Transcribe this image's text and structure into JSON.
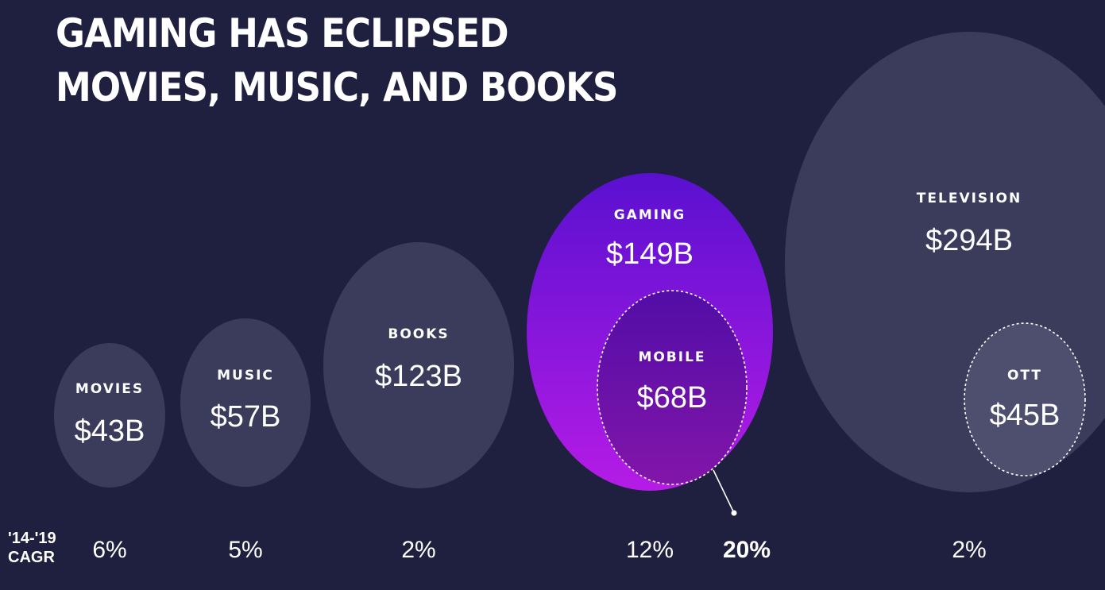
{
  "title": {
    "line1": "GAMING HAS ECLIPSED",
    "line2": "MOVIES, MUSIC, AND BOOKS"
  },
  "cagr_label": {
    "line1": "'14-'19",
    "line2": "CAGR"
  },
  "colors": {
    "background": "#1f2040",
    "bubble": "#3b3c5c",
    "gaming_top": "#5a10d0",
    "gaming_bottom": "#b51ce6",
    "text": "#ffffff"
  },
  "chart_data": {
    "type": "bubble",
    "unit": "$B",
    "series": [
      {
        "name": "MOVIES",
        "value": 43,
        "value_label": "$43B",
        "cagr": "6%",
        "highlight": false
      },
      {
        "name": "MUSIC",
        "value": 57,
        "value_label": "$57B",
        "cagr": "5%",
        "highlight": false
      },
      {
        "name": "BOOKS",
        "value": 123,
        "value_label": "$123B",
        "cagr": "2%",
        "highlight": false
      },
      {
        "name": "GAMING",
        "value": 149,
        "value_label": "$149B",
        "cagr": "12%",
        "highlight": true,
        "subset": {
          "name": "MOBILE",
          "value": 68,
          "value_label": "$68B",
          "cagr": "20%"
        }
      },
      {
        "name": "TELEVISION",
        "value": 294,
        "value_label": "$294B",
        "cagr": "2%",
        "highlight": false,
        "subset": {
          "name": "OTT",
          "value": 45,
          "value_label": "$45B"
        }
      }
    ]
  }
}
